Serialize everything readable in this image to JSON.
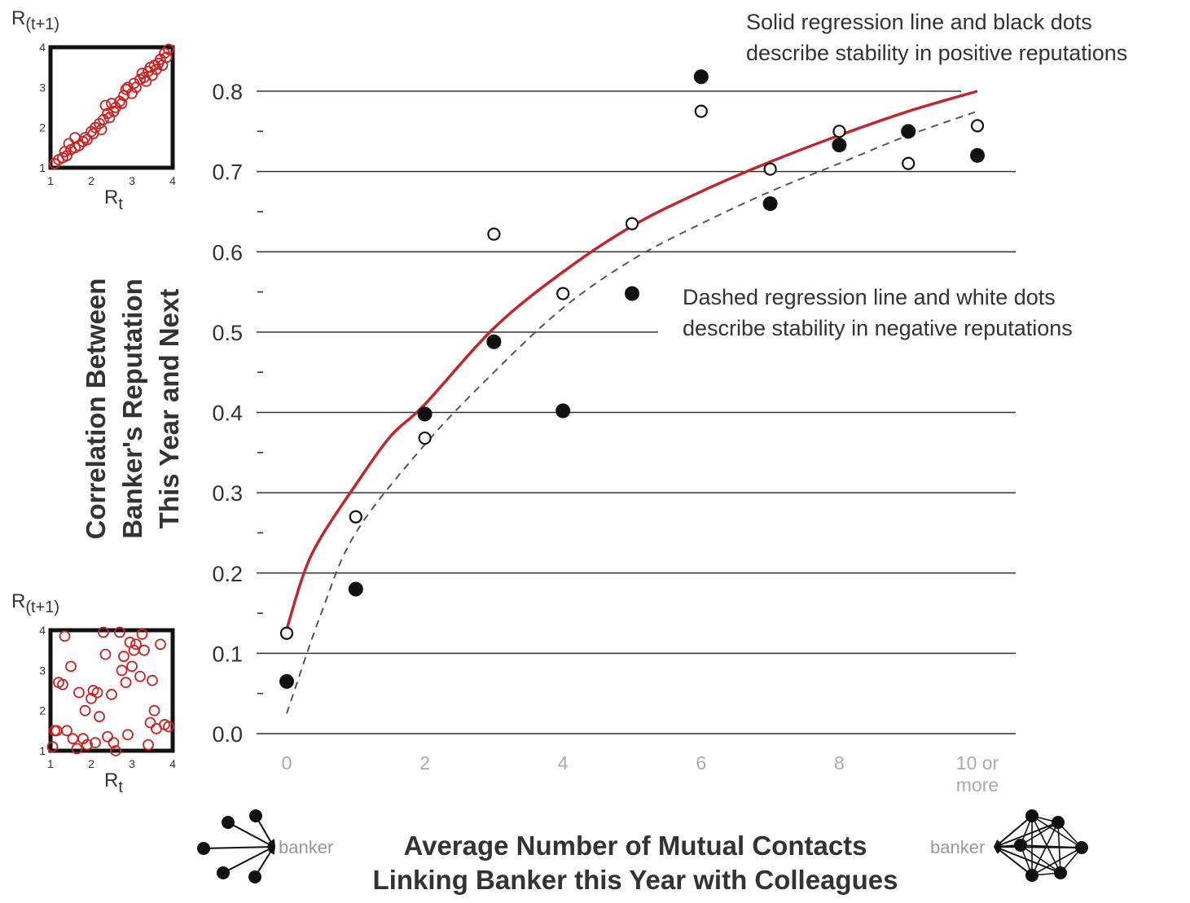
{
  "chart_data": {
    "type": "scatter",
    "xlabel_line1": "Average Number of Mutual Contacts",
    "xlabel_line2": "Linking Banker this Year with Colleagues",
    "ylabel_line1": "Correlation Between",
    "ylabel_line2": "Banker's Reputation",
    "ylabel_line3": "This Year and Next",
    "x_tick_labels": [
      "0",
      "2",
      "4",
      "6",
      "8",
      "10 or",
      "more"
    ],
    "y_tick_labels": [
      "0.0",
      "0.1",
      "0.2",
      "0.3",
      "0.4",
      "0.5",
      "0.6",
      "0.7",
      "0.8"
    ],
    "xlim": [
      0,
      10
    ],
    "ylim": [
      0,
      0.8
    ],
    "grid": true,
    "annotations": {
      "solid_line1": "Solid regression line and black dots",
      "solid_line2": "describe stability in positive reputations",
      "dashed_line1": "Dashed regression line and white dots",
      "dashed_line2": "describe stability in negative reputations"
    },
    "series": [
      {
        "key": "positive",
        "marker": "filled-black",
        "points": [
          [
            0,
            0.065
          ],
          [
            1,
            0.18
          ],
          [
            2,
            0.398
          ],
          [
            3,
            0.488
          ],
          [
            4,
            0.402
          ],
          [
            5,
            0.548
          ],
          [
            6,
            0.818
          ],
          [
            7,
            0.66
          ],
          [
            8,
            0.733
          ],
          [
            9,
            0.75
          ],
          [
            10,
            0.72
          ]
        ]
      },
      {
        "key": "negative",
        "marker": "open-white",
        "points": [
          [
            0,
            0.125
          ],
          [
            1,
            0.27
          ],
          [
            2,
            0.368
          ],
          [
            3,
            0.622
          ],
          [
            4,
            0.548
          ],
          [
            5,
            0.635
          ],
          [
            6,
            0.775
          ],
          [
            7,
            0.703
          ],
          [
            8,
            0.75
          ],
          [
            9,
            0.71
          ],
          [
            10,
            0.757
          ]
        ]
      }
    ],
    "fits": [
      {
        "key": "positive",
        "style": "solid",
        "color": "#c0262c",
        "points": [
          [
            0,
            0.13
          ],
          [
            0.25,
            0.2
          ],
          [
            0.5,
            0.245
          ],
          [
            1,
            0.31
          ],
          [
            1.5,
            0.37
          ],
          [
            2,
            0.41
          ],
          [
            3,
            0.505
          ],
          [
            4,
            0.575
          ],
          [
            5,
            0.632
          ],
          [
            6,
            0.675
          ],
          [
            7,
            0.712
          ],
          [
            8,
            0.745
          ],
          [
            9,
            0.775
          ],
          [
            10,
            0.8
          ]
        ]
      },
      {
        "key": "negative",
        "style": "dashed",
        "color": "#555555",
        "points": [
          [
            0,
            0.025
          ],
          [
            0.5,
            0.15
          ],
          [
            1,
            0.25
          ],
          [
            2,
            0.36
          ],
          [
            3,
            0.45
          ],
          [
            4,
            0.53
          ],
          [
            5,
            0.59
          ],
          [
            6,
            0.635
          ],
          [
            7,
            0.675
          ],
          [
            8,
            0.71
          ],
          [
            9,
            0.745
          ],
          [
            10,
            0.775
          ]
        ]
      }
    ],
    "insets": [
      {
        "key": "high",
        "title": "R(t+1)",
        "xlabel": "Rt",
        "x_ticks": [
          "1",
          "2",
          "3",
          "4"
        ],
        "y_ticks": [
          "1",
          "2",
          "3",
          "4"
        ],
        "color": "#cc2222",
        "points": [
          [
            1.1,
            1.1
          ],
          [
            1.2,
            1.2
          ],
          [
            1.3,
            1.25
          ],
          [
            1.35,
            1.4
          ],
          [
            1.4,
            1.3
          ],
          [
            1.45,
            1.6
          ],
          [
            1.5,
            1.45
          ],
          [
            1.6,
            1.5
          ],
          [
            1.7,
            1.55
          ],
          [
            1.8,
            1.65
          ],
          [
            1.85,
            1.75
          ],
          [
            1.9,
            1.7
          ],
          [
            2.0,
            1.9
          ],
          [
            2.05,
            1.85
          ],
          [
            2.1,
            2.0
          ],
          [
            2.2,
            2.1
          ],
          [
            2.25,
            1.95
          ],
          [
            2.3,
            2.2
          ],
          [
            2.4,
            2.35
          ],
          [
            2.45,
            2.25
          ],
          [
            2.5,
            2.6
          ],
          [
            2.55,
            2.4
          ],
          [
            2.6,
            2.5
          ],
          [
            2.7,
            2.65
          ],
          [
            2.75,
            2.6
          ],
          [
            2.8,
            2.8
          ],
          [
            2.85,
            2.95
          ],
          [
            2.9,
            3.0
          ],
          [
            3.0,
            2.85
          ],
          [
            3.05,
            3.1
          ],
          [
            3.1,
            3.0
          ],
          [
            3.2,
            3.2
          ],
          [
            3.25,
            3.35
          ],
          [
            3.3,
            3.25
          ],
          [
            3.4,
            3.4
          ],
          [
            3.45,
            3.5
          ],
          [
            3.5,
            3.3
          ],
          [
            3.55,
            3.55
          ],
          [
            3.6,
            3.45
          ],
          [
            3.65,
            3.6
          ],
          [
            3.7,
            3.7
          ],
          [
            3.75,
            3.55
          ],
          [
            3.8,
            3.85
          ],
          [
            3.85,
            3.75
          ],
          [
            3.9,
            3.95
          ],
          [
            2.35,
            2.55
          ],
          [
            1.6,
            1.75
          ],
          [
            3.35,
            3.15
          ]
        ]
      },
      {
        "key": "low",
        "title": "R(t+1)",
        "xlabel": "Rt",
        "x_ticks": [
          "1",
          "2",
          "3",
          "4"
        ],
        "y_ticks": [
          "1",
          "2",
          "3",
          "4"
        ],
        "color": "#cc2222",
        "points": [
          [
            1.05,
            1.1
          ],
          [
            1.1,
            1.5
          ],
          [
            1.2,
            2.7
          ],
          [
            1.3,
            2.65
          ],
          [
            1.35,
            3.85
          ],
          [
            1.4,
            1.5
          ],
          [
            1.5,
            3.1
          ],
          [
            1.55,
            1.3
          ],
          [
            1.65,
            1.05
          ],
          [
            1.7,
            2.45
          ],
          [
            1.8,
            1.3
          ],
          [
            1.85,
            2.0
          ],
          [
            1.9,
            1.15
          ],
          [
            2.0,
            2.3
          ],
          [
            2.05,
            2.5
          ],
          [
            2.1,
            1.2
          ],
          [
            2.15,
            2.45
          ],
          [
            2.2,
            1.85
          ],
          [
            2.3,
            3.95
          ],
          [
            2.35,
            3.4
          ],
          [
            2.4,
            1.35
          ],
          [
            2.5,
            2.4
          ],
          [
            2.55,
            1.2
          ],
          [
            2.6,
            1.0
          ],
          [
            2.7,
            3.95
          ],
          [
            2.75,
            3.0
          ],
          [
            2.8,
            3.35
          ],
          [
            2.85,
            2.7
          ],
          [
            2.9,
            1.4
          ],
          [
            3.0,
            3.1
          ],
          [
            3.05,
            3.5
          ],
          [
            3.1,
            3.65
          ],
          [
            3.2,
            2.85
          ],
          [
            3.25,
            3.9
          ],
          [
            3.3,
            3.5
          ],
          [
            3.4,
            1.15
          ],
          [
            3.45,
            1.7
          ],
          [
            3.5,
            2.75
          ],
          [
            3.55,
            2.0
          ],
          [
            3.6,
            1.55
          ],
          [
            3.7,
            3.65
          ],
          [
            3.8,
            1.65
          ],
          [
            3.9,
            1.6
          ],
          [
            1.15,
            1.5
          ],
          [
            2.95,
            3.7
          ]
        ]
      }
    ],
    "network_icons": {
      "left_label": "banker",
      "right_label": "banker"
    }
  }
}
